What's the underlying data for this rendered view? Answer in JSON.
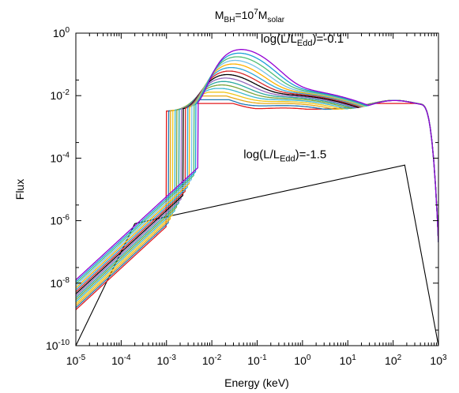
{
  "chart_data": {
    "type": "line",
    "title": {
      "base": "M",
      "base_sub": "BH",
      "mid": "=10",
      "mid_sup": "7",
      "tail": "M",
      "tail_sub": "solar"
    },
    "xlabel": "Energy (keV)",
    "ylabel": "Flux",
    "x_scale": "log",
    "y_scale": "log",
    "xlim": [
      1e-05,
      1000
    ],
    "ylim": [
      1e-10,
      1
    ],
    "x_ticks": [
      {
        "base": "10",
        "exp": "-5",
        "value": 1e-05
      },
      {
        "base": "10",
        "exp": "-4",
        "value": 0.0001
      },
      {
        "base": "10",
        "exp": "-3",
        "value": 0.001
      },
      {
        "base": "10",
        "exp": "-2",
        "value": 0.01
      },
      {
        "base": "10",
        "exp": "-1",
        "value": 0.1
      },
      {
        "base": "10",
        "exp": "0",
        "value": 1
      },
      {
        "base": "10",
        "exp": "1",
        "value": 10
      },
      {
        "base": "10",
        "exp": "2",
        "value": 100
      },
      {
        "base": "10",
        "exp": "3",
        "value": 1000
      }
    ],
    "y_ticks": [
      {
        "base": "10",
        "exp": "-10",
        "value": 1e-10
      },
      {
        "base": "10",
        "exp": "-8",
        "value": 1e-08
      },
      {
        "base": "10",
        "exp": "-6",
        "value": 1e-06
      },
      {
        "base": "10",
        "exp": "-4",
        "value": 0.0001
      },
      {
        "base": "10",
        "exp": "-2",
        "value": 0.01
      },
      {
        "base": "10",
        "exp": "0",
        "value": 1
      }
    ],
    "annotations": [
      {
        "pre": "log(L/L",
        "sub": "Edd",
        "post": ")=-0.1",
        "x": 0.12,
        "y": 0.5
      },
      {
        "pre": "log(L/L",
        "sub": "Edd",
        "post": ")=-1.5",
        "x": 0.05,
        "y": 0.0001
      }
    ],
    "grid": false,
    "legend": "none",
    "series_template": {
      "peak_x": [
        0.007,
        0.035
      ],
      "peak_y": [
        0.005,
        0.32
      ],
      "shoulder_x": 0.4,
      "bump_x": 100,
      "bump_y": 0.004,
      "cutoff_x": 500,
      "low_end_y": [
        1e-09,
        9e-09
      ]
    },
    "series": [
      {
        "color": "#e31a1c"
      },
      {
        "color": "#1f78b4"
      },
      {
        "color": "#e6a817"
      },
      {
        "color": "#f0c419"
      },
      {
        "color": "#3cb8d0"
      },
      {
        "color": "#7ba33a"
      },
      {
        "color": "#2aa7a0"
      },
      {
        "color": "#9467bd"
      },
      {
        "color": "#000000"
      },
      {
        "color": "#d62728"
      },
      {
        "color": "#2ca6d8"
      },
      {
        "color": "#ffb000"
      },
      {
        "color": "#76c2e8"
      },
      {
        "color": "#4dbd74"
      },
      {
        "color": "#1b9fd6"
      },
      {
        "color": "#9400d3"
      }
    ],
    "reference_line": {
      "color": "#000000",
      "points": [
        [
          1e-05,
          1e-10
        ],
        [
          0.0002,
          8e-07
        ],
        [
          180,
          6e-05
        ],
        [
          1000,
          1e-10
        ]
      ]
    }
  }
}
